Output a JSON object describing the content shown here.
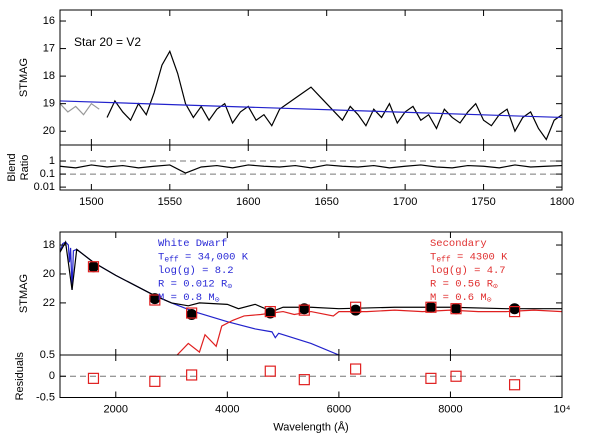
{
  "chart_data": [
    {
      "type": "line",
      "annotation": "Star 20 = V2",
      "ylabel": "STMAG",
      "xlim": [
        1480,
        1800
      ],
      "ylim": [
        20.5,
        15.6
      ],
      "yticks": [
        16,
        17,
        18,
        19,
        20
      ],
      "series": [
        {
          "color": "#999999",
          "x": [
            1480,
            1485,
            1490,
            1495,
            1500,
            1505
          ],
          "values": [
            19.0,
            19.3,
            19.1,
            19.4,
            19.0,
            19.2
          ]
        },
        {
          "color": "#000000",
          "x": [
            1510,
            1515,
            1520,
            1525,
            1530,
            1535,
            1540,
            1545,
            1550,
            1555,
            1560,
            1565,
            1570,
            1575,
            1580,
            1585,
            1590,
            1595,
            1600,
            1605,
            1610,
            1615,
            1620,
            1625,
            1630,
            1635,
            1640,
            1645,
            1650,
            1655,
            1660,
            1665,
            1670,
            1675,
            1680,
            1685,
            1690,
            1695,
            1700,
            1705,
            1710,
            1715,
            1720,
            1725,
            1730,
            1735,
            1740,
            1745,
            1750,
            1755,
            1760,
            1765,
            1770,
            1775,
            1780,
            1785,
            1790,
            1795,
            1800
          ],
          "values": [
            19.5,
            18.9,
            19.3,
            19.6,
            19.0,
            19.4,
            18.6,
            17.6,
            17.1,
            17.9,
            19.0,
            19.5,
            19.1,
            19.6,
            19.2,
            19.0,
            19.7,
            19.3,
            19.1,
            19.6,
            19.4,
            19.8,
            19.2,
            19.0,
            18.8,
            18.6,
            18.4,
            18.7,
            19.0,
            19.3,
            19.6,
            19.1,
            19.4,
            19.8,
            19.2,
            19.5,
            19.0,
            19.7,
            19.3,
            19.1,
            19.6,
            19.4,
            19.9,
            19.2,
            19.5,
            19.7,
            19.3,
            19.0,
            19.6,
            19.8,
            19.4,
            19.2,
            20.0,
            19.5,
            19.3,
            19.9,
            20.3,
            19.6,
            19.4
          ]
        },
        {
          "color": "#2222cc",
          "x": [
            1480,
            1800
          ],
          "values": [
            18.9,
            19.5
          ]
        }
      ]
    },
    {
      "type": "line",
      "ylabel": [
        "Blend",
        "Ratio"
      ],
      "ylog": true,
      "xlim": [
        1480,
        1800
      ],
      "xticks": [
        1500,
        1550,
        1600,
        1650,
        1700,
        1750,
        1800
      ],
      "ylim": [
        0.006,
        17
      ],
      "yticks": [
        0.01,
        0.1,
        1
      ],
      "reference_lines": [
        1,
        0.1
      ],
      "series": [
        {
          "color": "#000000",
          "x": [
            1480,
            1490,
            1500,
            1510,
            1520,
            1530,
            1540,
            1550,
            1560,
            1570,
            1580,
            1590,
            1600,
            1610,
            1620,
            1630,
            1640,
            1650,
            1660,
            1670,
            1680,
            1690,
            1700,
            1710,
            1720,
            1730,
            1740,
            1750,
            1760,
            1770,
            1780,
            1790,
            1800
          ],
          "values": [
            0.4,
            0.3,
            0.5,
            0.35,
            0.45,
            0.3,
            0.4,
            0.5,
            0.12,
            0.35,
            0.45,
            0.3,
            0.5,
            0.4,
            0.35,
            0.45,
            0.3,
            0.5,
            0.4,
            0.35,
            0.45,
            0.3,
            0.4,
            0.5,
            0.35,
            0.3,
            0.45,
            0.4,
            0.3,
            0.5,
            0.35,
            0.4,
            0.45
          ]
        }
      ]
    },
    {
      "type": "line",
      "ylabel": "STMAG",
      "xlim": [
        1000,
        10000
      ],
      "ylim": [
        25.6,
        17.1
      ],
      "yticks": [
        18,
        20,
        22
      ],
      "annotations": [
        {
          "color": "#2a2ad6",
          "lines": [
            {
              "text": "White Dwarf"
            },
            {
              "text": "T",
              "sub": "eff",
              "after": " = 34,000 K"
            },
            {
              "text": "log(g) = 8.2"
            },
            {
              "text": "R = 0.012 R",
              "sub": "⊙"
            },
            {
              "text": "M = 0.8 M",
              "sub": "⊙"
            }
          ]
        },
        {
          "color": "#e03030",
          "lines": [
            {
              "text": "Secondary"
            },
            {
              "text": "T",
              "sub": "eff",
              "after": " = 4300 K"
            },
            {
              "text": "log(g) = 4.7"
            },
            {
              "text": "R = 0.56 R",
              "sub": "⊙"
            },
            {
              "text": "M = 0.6 M",
              "sub": "⊙"
            }
          ]
        }
      ],
      "series": [
        {
          "color": "#2222cc",
          "x": [
            1000,
            1050,
            1100,
            1150,
            1170,
            1190,
            1216,
            1240,
            1300,
            1400,
            1600,
            2000,
            2700,
            3000,
            3400,
            4000,
            4500,
            4800,
            4860,
            4920,
            5000,
            5500,
            6000
          ],
          "values": [
            18.5,
            17.9,
            17.8,
            18.0,
            19.2,
            18.2,
            21.1,
            18.4,
            18.3,
            18.6,
            19.2,
            20.1,
            21.5,
            22.0,
            22.6,
            23.3,
            23.8,
            24.0,
            24.4,
            24.1,
            24.2,
            24.8,
            25.6
          ]
        },
        {
          "color": "#e02020",
          "x": [
            3100,
            3300,
            3500,
            3600,
            3800,
            3900,
            4100,
            4300,
            4600,
            5000,
            5200,
            5500,
            5900,
            6000,
            6500,
            7000,
            7500,
            8000,
            8500,
            9000,
            9500,
            10000
          ],
          "values": [
            25.6,
            24.8,
            25.4,
            24.2,
            25.0,
            23.6,
            23.2,
            22.9,
            22.8,
            22.6,
            22.8,
            22.6,
            22.9,
            22.6,
            22.6,
            22.5,
            22.6,
            22.5,
            22.6,
            22.6,
            22.5,
            22.6
          ]
        },
        {
          "color": "#000000",
          "x": [
            1000,
            1100,
            1216,
            1300,
            1600,
            2000,
            2700,
            3000,
            3300,
            3500,
            4000,
            4200,
            4500,
            4800,
            5000,
            5500,
            6000,
            7000,
            8000,
            9000,
            10000
          ],
          "values": [
            18.5,
            17.8,
            21.1,
            18.3,
            19.2,
            20.1,
            21.5,
            22.0,
            22.2,
            22.0,
            22.1,
            22.4,
            22.1,
            22.6,
            22.3,
            22.3,
            22.4,
            22.3,
            22.3,
            22.4,
            22.4
          ]
        },
        {
          "color": "#000000",
          "marker": "circle",
          "x": [
            1600,
            2700,
            3360,
            4770,
            5380,
            6300,
            7650,
            8100,
            9150
          ],
          "values": [
            19.5,
            21.7,
            22.8,
            22.7,
            22.4,
            22.5,
            22.3,
            22.4,
            22.4
          ]
        },
        {
          "color": "#e02020",
          "marker": "square",
          "x": [
            1600,
            2700,
            3360,
            4770,
            5380,
            6300,
            7650,
            8100,
            9150
          ],
          "values": [
            19.5,
            21.8,
            22.7,
            22.6,
            22.5,
            22.3,
            22.3,
            22.4,
            22.6
          ]
        }
      ]
    },
    {
      "type": "line",
      "ylabel": "Residuals",
      "xlabel": "Wavelength (Å)",
      "xlim": [
        1000,
        10000
      ],
      "xticks": [
        2000,
        4000,
        6000,
        8000,
        {
          "value": 10000,
          "label": "10⁴"
        }
      ],
      "ylim": [
        -0.5,
        0.5
      ],
      "yticks": [
        -0.5,
        0,
        0.5
      ],
      "reference_lines": [
        0
      ],
      "series": [
        {
          "color": "#e02020",
          "marker": "square",
          "x": [
            1600,
            2700,
            3360,
            4770,
            5380,
            6300,
            7650,
            8100,
            9150
          ],
          "values": [
            -0.05,
            -0.12,
            0.03,
            0.12,
            -0.08,
            0.17,
            -0.05,
            0.0,
            -0.2
          ]
        }
      ]
    }
  ]
}
